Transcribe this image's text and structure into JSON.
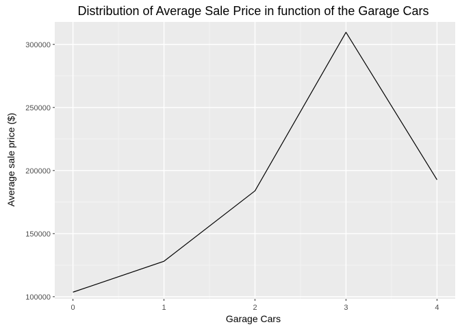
{
  "colors": {
    "panel_background": "#EBEBEB",
    "grid_major": "#FFFFFF",
    "grid_minor": "#F5F5F5",
    "line": "#000000",
    "tick_text": "#4D4D4D",
    "tick_mark": "#333333"
  },
  "chart_data": {
    "type": "line",
    "title": "Distribution of Average Sale Price in function of the Garage Cars",
    "xlabel": "Garage Cars",
    "ylabel": "Average sale price ($)",
    "x": [
      0,
      1,
      2,
      3,
      4
    ],
    "y": [
      103600,
      128100,
      183900,
      309600,
      192700
    ],
    "xlim": [
      -0.2,
      4.2
    ],
    "ylim": [
      98300,
      317800
    ],
    "x_ticks": [
      0,
      1,
      2,
      3,
      4
    ],
    "x_tick_labels": [
      "0",
      "1",
      "2",
      "3",
      "4"
    ],
    "y_ticks": [
      100000,
      150000,
      200000,
      250000,
      300000
    ],
    "y_tick_labels": [
      "100000",
      "150000",
      "200000",
      "250000",
      "300000"
    ],
    "grid": true,
    "legend": "none"
  }
}
